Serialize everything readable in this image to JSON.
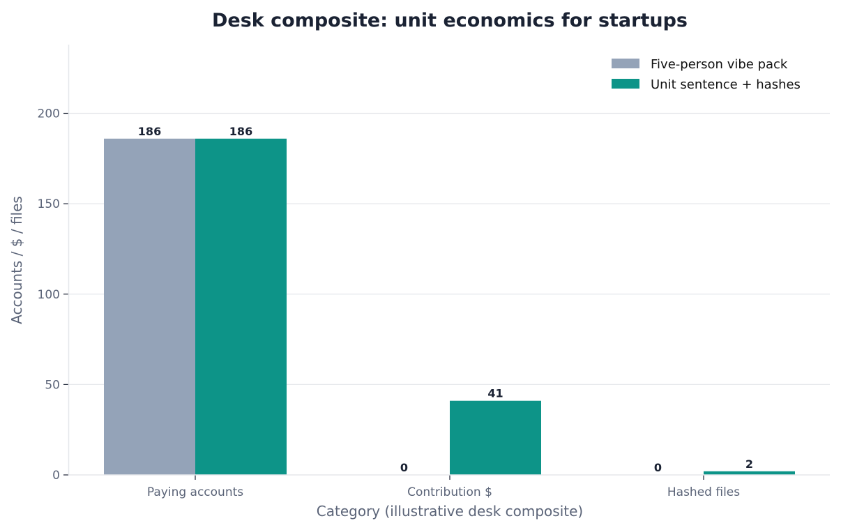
{
  "chart_data": {
    "type": "bar",
    "title": "Desk composite: unit economics for startups",
    "xlabel": "Category (illustrative desk composite)",
    "ylabel": "Accounts / $ / files",
    "categories": [
      "Paying accounts",
      "Contribution $",
      "Hashed files"
    ],
    "series": [
      {
        "name": "Five-person vibe pack",
        "values": [
          186,
          0,
          0
        ],
        "color": "#94a3b8"
      },
      {
        "name": "Unit sentence + hashes",
        "values": [
          186,
          41,
          2
        ],
        "color": "#0d9488"
      }
    ],
    "ylim": [
      0,
      238
    ],
    "yticks": [
      0,
      50,
      100,
      150,
      200
    ],
    "grid": "horizontal",
    "legend_position": "top-right"
  }
}
